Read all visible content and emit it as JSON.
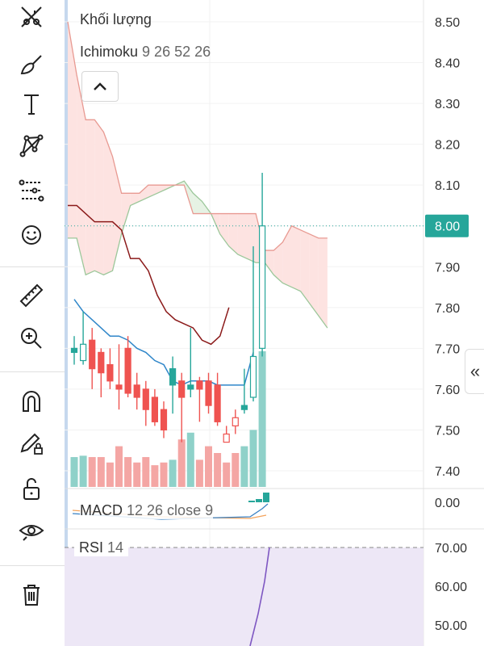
{
  "toolbar": {
    "tools": [
      {
        "name": "trend-line-tool",
        "icon": "crossed-lines-icon"
      },
      {
        "name": "brush-tool",
        "icon": "brush-icon"
      },
      {
        "name": "text-tool",
        "icon": "text-icon"
      },
      {
        "name": "pattern-tool",
        "icon": "pattern-icon"
      },
      {
        "name": "prediction-tool",
        "icon": "forecast-icon"
      },
      {
        "name": "emoji-tool",
        "icon": "smiley-icon"
      },
      {
        "name": "measure-tool",
        "icon": "ruler-icon"
      },
      {
        "name": "zoom-tool",
        "icon": "zoom-in-icon"
      },
      {
        "name": "magnet-tool",
        "icon": "magnet-icon"
      },
      {
        "name": "lock-drawing-tool",
        "icon": "pencil-lock-icon"
      },
      {
        "name": "lock-all-tool",
        "icon": "unlock-icon"
      },
      {
        "name": "hide-drawings-tool",
        "icon": "eye-icon"
      },
      {
        "name": "remove-drawings-tool",
        "icon": "trash-icon"
      }
    ]
  },
  "legend": {
    "volume_label": "Khối lượng",
    "ichimoku_label": "Ichimoku",
    "ichimoku_params": "9 26 52 26",
    "macd_label": "MACD",
    "macd_params": "12 26 close 9",
    "rsi_label": "RSI",
    "rsi_params": "14"
  },
  "colors": {
    "up": "#26a69a",
    "down": "#ef5350",
    "cloud_bear": "#fde3e1",
    "cloud_bull": "#e6f2e4",
    "tenkan": "#2f86c9",
    "kijun": "#8b1a1a",
    "rsi_band": "#ede7f6",
    "rsi_line": "#7e57c2",
    "current_price_bg": "#26a69a"
  },
  "chart_data": [
    {
      "type": "candlestick",
      "name": "price",
      "y_ticks": [
        "8.50",
        "8.40",
        "8.30",
        "8.20",
        "8.10",
        "8.00",
        "7.90",
        "7.80",
        "7.70",
        "7.60",
        "7.50",
        "7.40"
      ],
      "ylim": [
        7.36,
        8.54
      ],
      "current_price": "8.00",
      "candles": [
        {
          "o": 7.69,
          "h": 7.73,
          "l": 7.66,
          "c": 7.7
        },
        {
          "o": 7.67,
          "h": 7.79,
          "l": 7.66,
          "c": 7.71
        },
        {
          "o": 7.72,
          "h": 7.75,
          "l": 7.6,
          "c": 7.65
        },
        {
          "o": 7.69,
          "h": 7.7,
          "l": 7.58,
          "c": 7.64
        },
        {
          "o": 7.66,
          "h": 7.7,
          "l": 7.6,
          "c": 7.62
        },
        {
          "o": 7.61,
          "h": 7.71,
          "l": 7.55,
          "c": 7.6
        },
        {
          "o": 7.7,
          "h": 7.73,
          "l": 7.58,
          "c": 7.59
        },
        {
          "o": 7.61,
          "h": 7.64,
          "l": 7.55,
          "c": 7.58
        },
        {
          "o": 7.6,
          "h": 7.62,
          "l": 7.51,
          "c": 7.55
        },
        {
          "o": 7.58,
          "h": 7.6,
          "l": 7.51,
          "c": 7.52
        },
        {
          "o": 7.55,
          "h": 7.57,
          "l": 7.48,
          "c": 7.5
        },
        {
          "o": 7.61,
          "h": 7.68,
          "l": 7.54,
          "c": 7.65
        },
        {
          "o": 7.62,
          "h": 7.64,
          "l": 7.47,
          "c": 7.58
        },
        {
          "o": 7.6,
          "h": 7.75,
          "l": 7.58,
          "c": 7.61
        },
        {
          "o": 7.62,
          "h": 7.63,
          "l": 7.52,
          "c": 7.6
        },
        {
          "o": 7.62,
          "h": 7.64,
          "l": 7.54,
          "c": 7.56
        },
        {
          "o": 7.61,
          "h": 7.64,
          "l": 7.51,
          "c": 7.52
        },
        {
          "o": 7.49,
          "h": 7.51,
          "l": 7.47,
          "c": 7.47
        },
        {
          "o": 7.53,
          "h": 7.55,
          "l": 7.49,
          "c": 7.51
        },
        {
          "o": 7.55,
          "h": 7.65,
          "l": 7.54,
          "c": 7.56
        },
        {
          "o": 7.58,
          "h": 7.95,
          "l": 7.57,
          "c": 7.68
        },
        {
          "o": 7.7,
          "h": 8.13,
          "l": 7.68,
          "c": 8.0
        }
      ],
      "tenkan_sen": [
        7.82,
        7.79,
        7.77,
        7.75,
        7.73,
        7.73,
        7.72,
        7.7,
        7.69,
        7.67,
        7.66,
        7.62,
        7.61,
        7.62,
        7.62,
        7.62,
        7.61,
        7.61,
        7.61,
        7.61,
        7.69
      ],
      "kijun_sen": [
        8.05,
        8.05,
        8.03,
        8.01,
        8.01,
        8.01,
        7.99,
        7.92,
        7.92,
        7.89,
        7.83,
        7.79,
        7.77,
        7.76,
        7.75,
        7.72,
        7.71,
        7.73,
        7.8
      ],
      "senkou_span_a": [
        7.97,
        7.97,
        7.88,
        7.89,
        7.88,
        7.89,
        7.98,
        8.05,
        8.06,
        8.07,
        8.08,
        8.09,
        8.1,
        8.11,
        8.08,
        8.06,
        8.03,
        7.98,
        7.95,
        7.93,
        7.92,
        7.91,
        7.91,
        7.88,
        7.86,
        7.85,
        7.84,
        7.81,
        7.78,
        7.75
      ],
      "senkou_span_b": [
        8.5,
        8.37,
        8.26,
        8.26,
        8.23,
        8.17,
        8.08,
        8.08,
        8.08,
        8.1,
        8.1,
        8.1,
        8.1,
        8.1,
        8.03,
        8.03,
        8.03,
        8.03,
        8.03,
        8.03,
        8.03,
        8.03,
        7.94,
        7.94,
        7.96,
        8.0,
        7.99,
        7.98,
        7.97,
        7.97
      ],
      "volume": [
        22,
        23,
        22,
        22,
        18,
        30,
        22,
        18,
        22,
        16,
        18,
        20,
        35,
        40,
        20,
        30,
        25,
        18,
        25,
        30,
        42,
        100
      ]
    },
    {
      "type": "line",
      "name": "MACD",
      "y_ticks": [
        "0.00"
      ]
    },
    {
      "type": "line",
      "name": "RSI",
      "y_ticks": [
        "70.00",
        "60.00",
        "50.00"
      ],
      "ylim": [
        45,
        72
      ],
      "upper_band": 70
    }
  ]
}
